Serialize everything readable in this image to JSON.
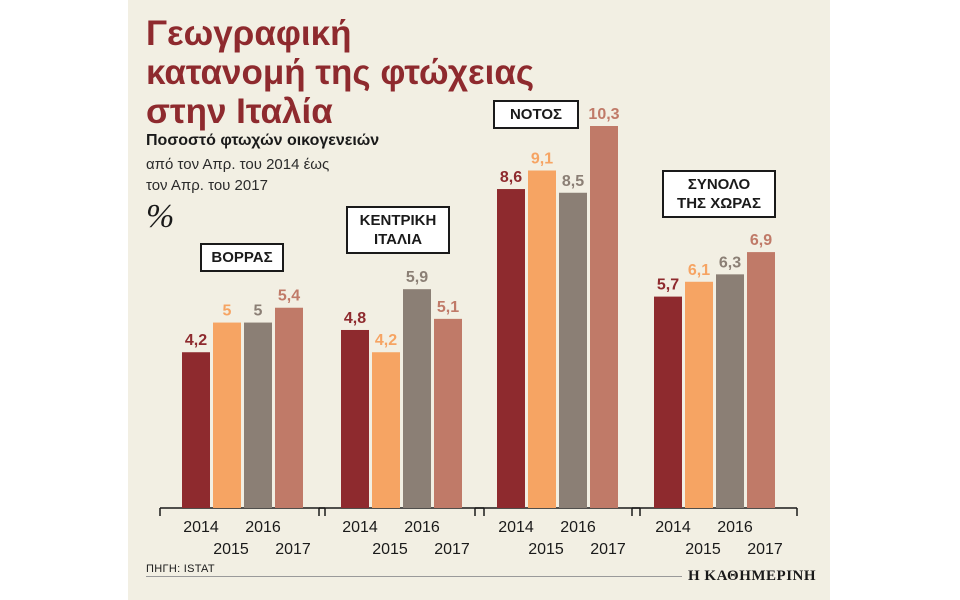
{
  "title": "Γεωγραφική\nκατανομή της φτώχειας\nστην Ιταλία",
  "subtitle": "Ποσοστό φτωχών οικογενειών",
  "period": "από τον Απρ. του 2014 έως\nτον Απρ. του 2017",
  "unit": "%",
  "source": "ΠΗΓΗ: ISTAT",
  "brand": "Η ΚΑΘΗΜΕΡΙΝΗ",
  "colors": {
    "2014": "#8e2a2e",
    "2015": "#f6a463",
    "2016": "#8b7f75",
    "2017": "#c07a68",
    "background": "#f2efe3"
  },
  "chart_data": {
    "type": "bar",
    "title": "Γεωγραφική κατανομή της φτώχειας στην Ιταλία",
    "ylabel": "%",
    "ylim": [
      0,
      10.3
    ],
    "series_names": [
      "2014",
      "2015",
      "2016",
      "2017"
    ],
    "groups": [
      {
        "label": "ΒΟΡΡΑΣ",
        "values": [
          4.2,
          5,
          5,
          5.4
        ],
        "value_labels": [
          "4,2",
          "5",
          "5",
          "5,4"
        ]
      },
      {
        "label": "ΚΕΝΤΡΙΚΗ\nΙΤΑΛΙΑ",
        "values": [
          4.8,
          4.2,
          5.9,
          5.1
        ],
        "value_labels": [
          "4,8",
          "4,2",
          "5,9",
          "5,1"
        ]
      },
      {
        "label": "ΝΟΤΟΣ",
        "values": [
          8.6,
          9.1,
          8.5,
          10.3
        ],
        "value_labels": [
          "8,6",
          "9,1",
          "8,5",
          "10,3"
        ]
      },
      {
        "label": "ΣΥΝΟΛΟ\nΤΗΣ ΧΩΡΑΣ",
        "values": [
          5.7,
          6.1,
          6.3,
          6.9
        ],
        "value_labels": [
          "5,7",
          "6,1",
          "6,3",
          "6,9"
        ]
      }
    ]
  }
}
